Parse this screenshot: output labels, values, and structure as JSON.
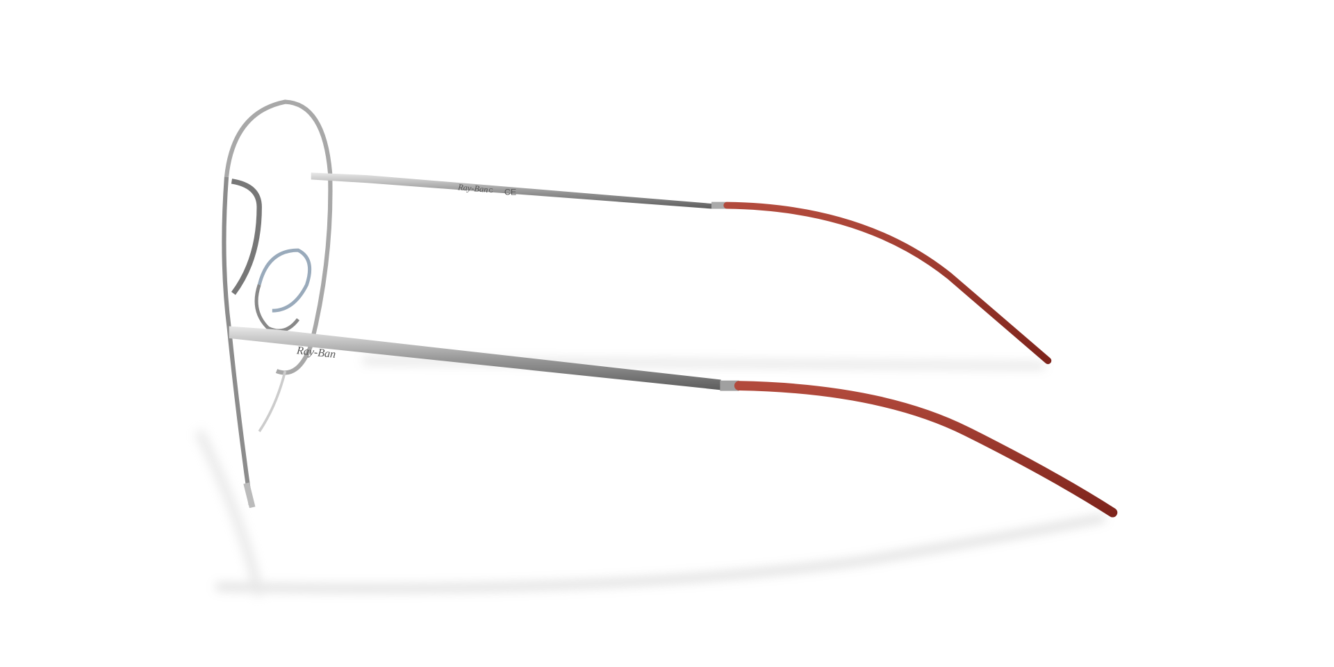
{
  "image": {
    "upper_temple_logo": "Ray-Ban",
    "upper_temple_mark_c": "C",
    "upper_temple_mark_ce": "CE",
    "lower_temple_logo": "Ray-Ban"
  }
}
